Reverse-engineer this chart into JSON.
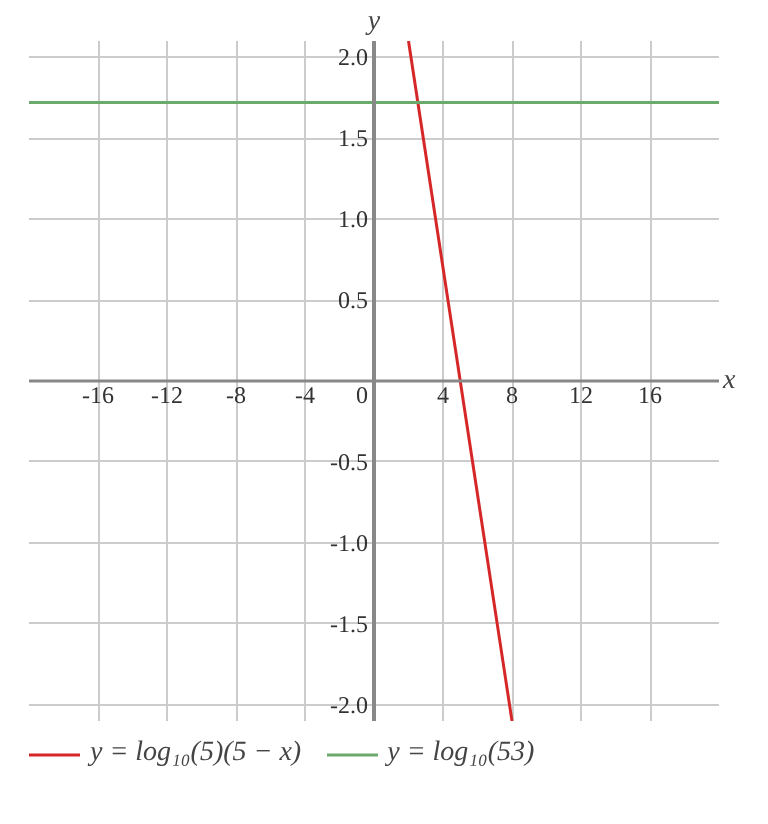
{
  "chart_data": {
    "type": "line",
    "xlabel": "x",
    "ylabel": "y",
    "xlim": [
      -20,
      20
    ],
    "ylim": [
      -2.1,
      2.1
    ],
    "xticks": [
      -16,
      -12,
      -8,
      -4,
      0,
      4,
      8,
      12,
      16
    ],
    "yticks": [
      {
        "value": -2,
        "label": "-2.0"
      },
      {
        "value": -1.5,
        "label": "-1.5"
      },
      {
        "value": -1,
        "label": "-1.0"
      },
      {
        "value": -0.5,
        "label": "-0.5"
      },
      {
        "value": 0.5,
        "label": "0.5"
      },
      {
        "value": 1,
        "label": "1.0"
      },
      {
        "value": 1.5,
        "label": "1.5"
      },
      {
        "value": 2,
        "label": "2.0"
      }
    ],
    "grid": true,
    "legend": "bottom",
    "marker": "none",
    "line_style": "solid",
    "series": [
      {
        "name": "y = log₁₀(5)(5 − x)",
        "color": "#d62728",
        "x": [
          2,
          8
        ],
        "values": [
          2.1,
          -2.1
        ]
      },
      {
        "name": "y = log₁₀(53)",
        "color": "#6aaa6a",
        "x": [
          -20,
          20
        ],
        "values": [
          1.72,
          1.72
        ]
      }
    ]
  }
}
